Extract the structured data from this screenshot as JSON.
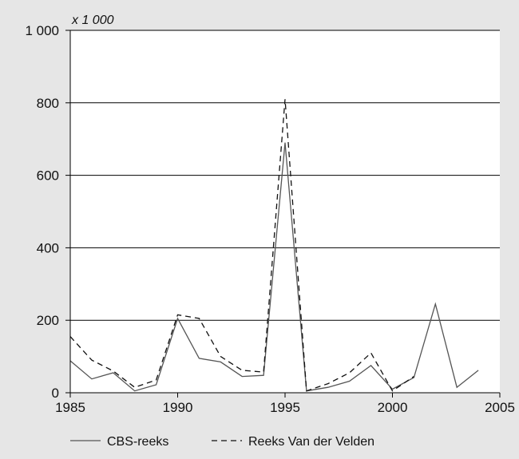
{
  "colors": {
    "background": "#e6e6e6",
    "plot_area": "#ffffff",
    "axis": "#000000",
    "grid": "#000000",
    "cbs_line": "#555555",
    "velden_line": "#111111"
  },
  "chart_data": {
    "type": "line",
    "unit_label": "x 1 000",
    "xlim": [
      1985,
      2005
    ],
    "ylim": [
      0,
      1000
    ],
    "x_ticks": [
      1985,
      1990,
      1995,
      2000,
      2005
    ],
    "x_tick_labels": [
      "1985",
      "1990",
      "1995",
      "2000",
      "2005"
    ],
    "y_ticks": [
      0,
      200,
      400,
      600,
      800,
      1000
    ],
    "y_tick_labels": [
      "0",
      "200",
      "400",
      "600",
      "800",
      "1 000"
    ],
    "grid": "horizontal",
    "legend_position": "bottom",
    "series": [
      {
        "name": "CBS-reeks",
        "style": "solid",
        "x": [
          1985,
          1986,
          1987,
          1988,
          1989,
          1990,
          1991,
          1992,
          1993,
          1994,
          1995,
          1996,
          1997,
          1998,
          1999,
          2000,
          2001,
          2002,
          2003,
          2004
        ],
        "y": [
          88,
          38,
          55,
          5,
          22,
          205,
          95,
          85,
          45,
          48,
          690,
          5,
          15,
          32,
          75,
          10,
          42,
          245,
          15,
          62
        ]
      },
      {
        "name": "Reeks Van der Velden",
        "style": "dashed",
        "x": [
          1985,
          1986,
          1987,
          1988,
          1989,
          1990,
          1991,
          1992,
          1993,
          1994,
          1995,
          1996,
          1997,
          1998,
          1999,
          2000,
          2001
        ],
        "y": [
          155,
          90,
          60,
          15,
          35,
          215,
          205,
          100,
          62,
          57,
          810,
          5,
          25,
          55,
          110,
          5,
          45
        ]
      }
    ]
  }
}
